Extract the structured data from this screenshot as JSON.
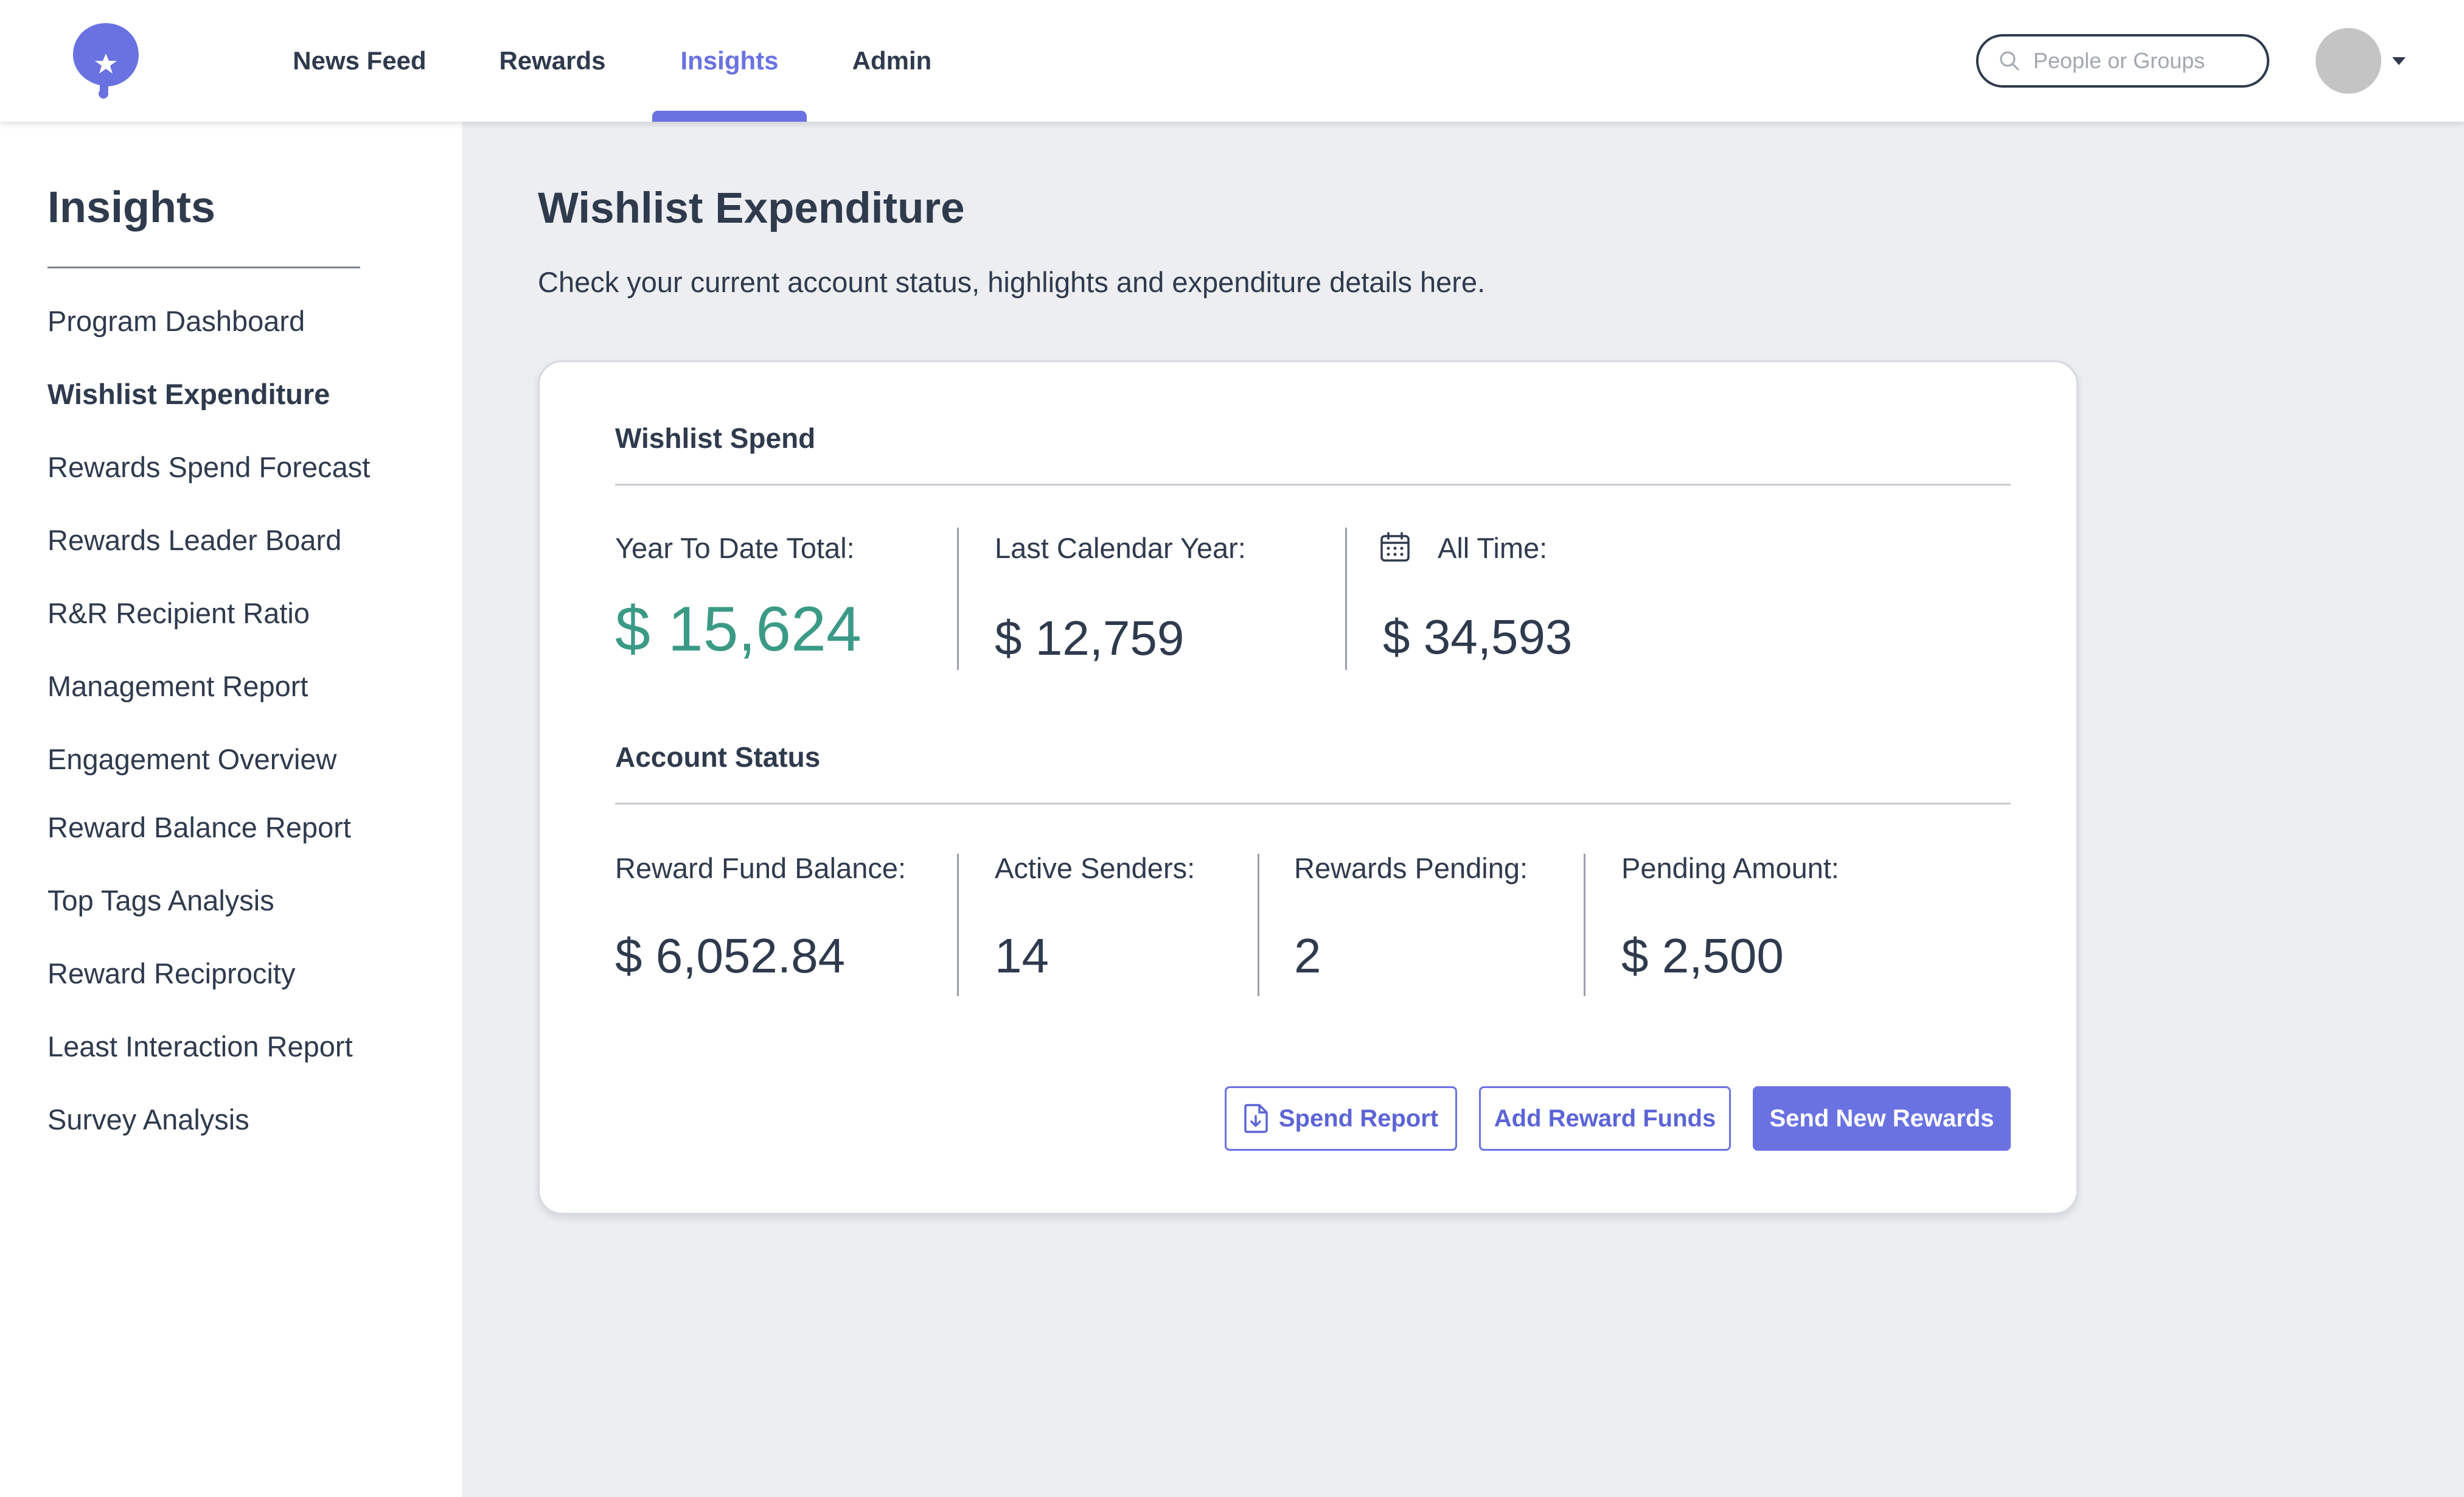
{
  "nav": {
    "items": [
      {
        "label": "News Feed"
      },
      {
        "label": "Rewards"
      },
      {
        "label": "Insights"
      },
      {
        "label": "Admin"
      }
    ],
    "active": "Insights",
    "search_placeholder": "People or Groups",
    "accent_color": "#6a72e2"
  },
  "sidebar": {
    "title": "Insights",
    "items": [
      {
        "label": "Program Dashboard"
      },
      {
        "label": "Wishlist Expenditure"
      },
      {
        "label": "Rewards Spend Forecast"
      },
      {
        "label": "Rewards Leader Board"
      },
      {
        "label": "R&R Recipient Ratio"
      },
      {
        "label": "Management Report"
      },
      {
        "label": "Engagement Overview"
      },
      {
        "label": "Reward Balance Report"
      },
      {
        "label": "Top Tags Analysis"
      },
      {
        "label": "Reward Reciprocity"
      },
      {
        "label": "Least Interaction Report"
      },
      {
        "label": "Survey Analysis"
      }
    ],
    "active": "Wishlist Expenditure"
  },
  "main": {
    "title": "Wishlist Expenditure",
    "subtitle": "Check your current account status, highlights and expenditure details here.",
    "wishlist_spend": {
      "title": "Wishlist Spend",
      "ytd_label": "Year To Date Total:",
      "ytd_value": "$ 15,624",
      "last_year_label": "Last Calendar Year:",
      "last_year_value": "$ 12,759",
      "all_time_label": "All Time:",
      "all_time_value": "$ 34,593",
      "highlight_color": "#3b9a86"
    },
    "account_status": {
      "title": "Account Status",
      "fund_balance_label": "Reward Fund Balance:",
      "fund_balance_value": "$ 6,052.84",
      "active_senders_label": "Active Senders:",
      "active_senders_value": "14",
      "rewards_pending_label": "Rewards Pending:",
      "rewards_pending_value": "2",
      "pending_amount_label": "Pending Amount:",
      "pending_amount_value": "$ 2,500"
    },
    "actions": {
      "spend_report": "Spend Report",
      "add_funds": "Add Reward Funds",
      "send_rewards": "Send New Rewards"
    }
  }
}
